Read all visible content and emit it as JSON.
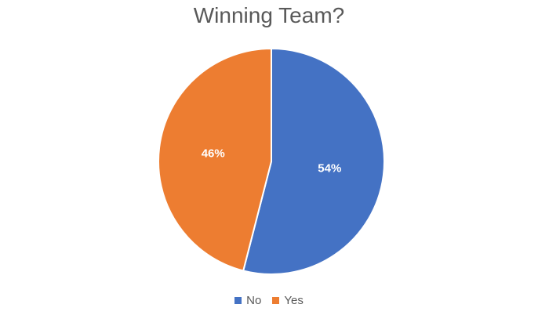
{
  "chart_data": {
    "type": "pie",
    "title": "Winning Team?",
    "categories": [
      "No",
      "Yes"
    ],
    "values": [
      54,
      46
    ],
    "labels": [
      "54%",
      "46%"
    ],
    "colors": [
      "#4472C4",
      "#ED7D31"
    ],
    "legend_position": "bottom"
  }
}
